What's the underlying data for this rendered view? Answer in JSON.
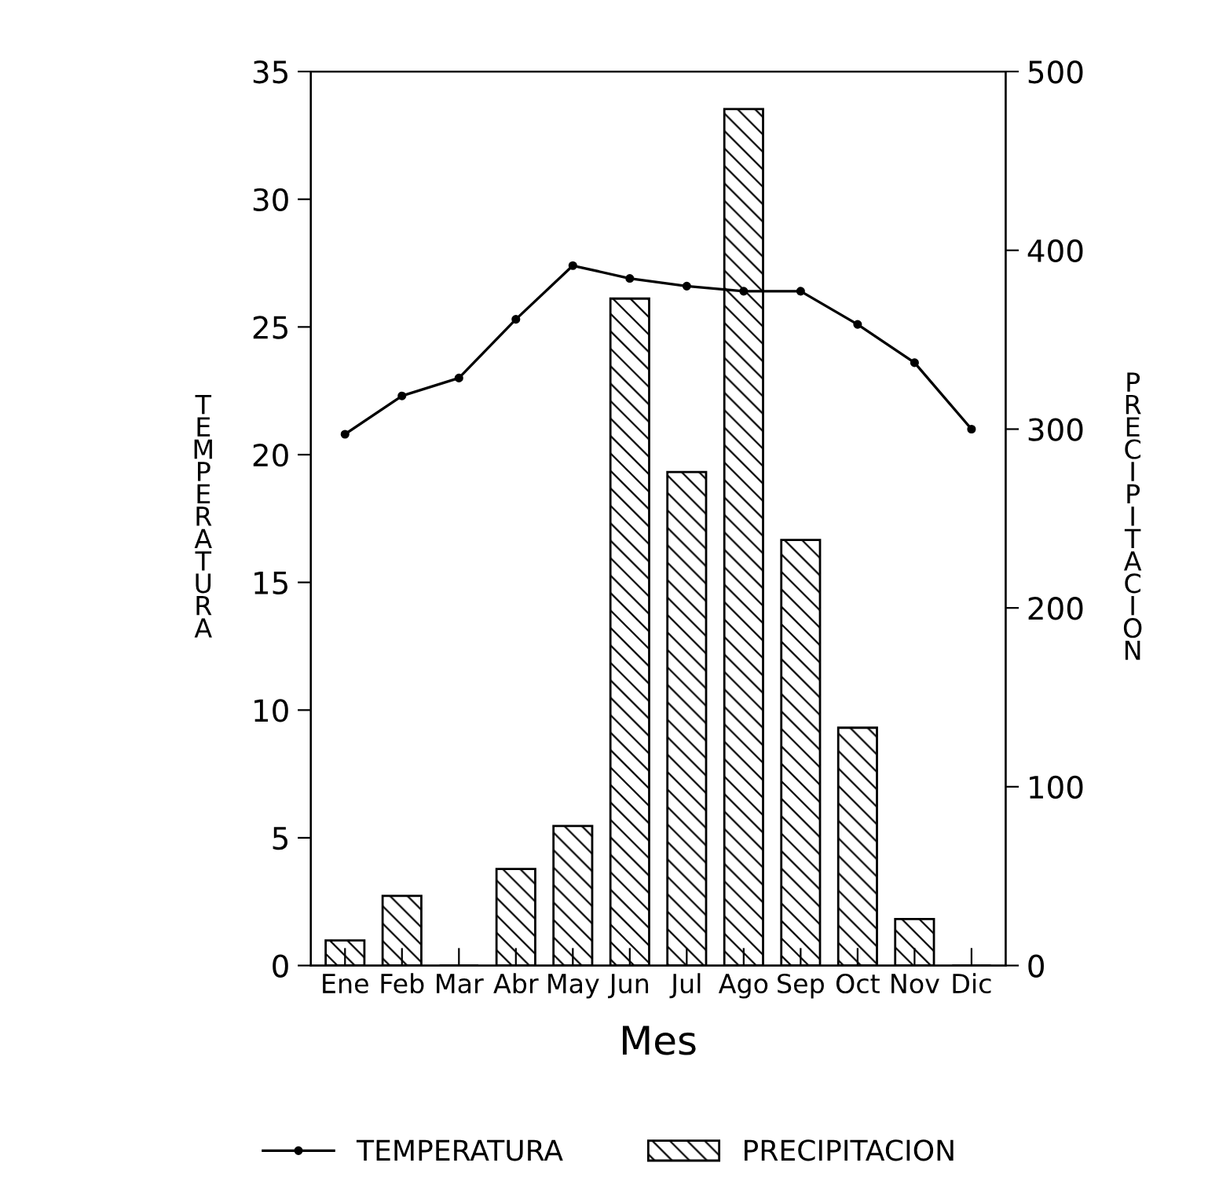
{
  "chart_data": {
    "type": "bar",
    "xlabel": "Mes",
    "ylabel": "TEMPERATURA",
    "y2label": "PRECIPITACION",
    "categories": [
      "Ene",
      "Feb",
      "Mar",
      "Abr",
      "May",
      "Jun",
      "Jul",
      "Ago",
      "Sep",
      "Oct",
      "Nov",
      "Dic"
    ],
    "series": [
      {
        "name": "TEMPERATURA",
        "type": "line",
        "color": "#000000",
        "marker": "circle",
        "line_style": "solid",
        "values": [
          20.8,
          22.3,
          23.0,
          25.3,
          27.4,
          26.9,
          26.6,
          26.4,
          26.4,
          25.1,
          23.6,
          21.0
        ]
      },
      {
        "name": "PRECIPITACION",
        "axis": "y2",
        "color": "#000000",
        "values": [
          14,
          39,
          0,
          54,
          78,
          373,
          276,
          479,
          238,
          133,
          26,
          0
        ]
      }
    ],
    "ylim": [
      0,
      35
    ],
    "yticks": [
      0,
      5,
      10,
      15,
      20,
      25,
      30,
      35
    ],
    "y2lim": [
      0,
      500
    ],
    "y2ticks": [
      0,
      100,
      200,
      300,
      400,
      500
    ],
    "grid": false,
    "legend": "bottom"
  }
}
